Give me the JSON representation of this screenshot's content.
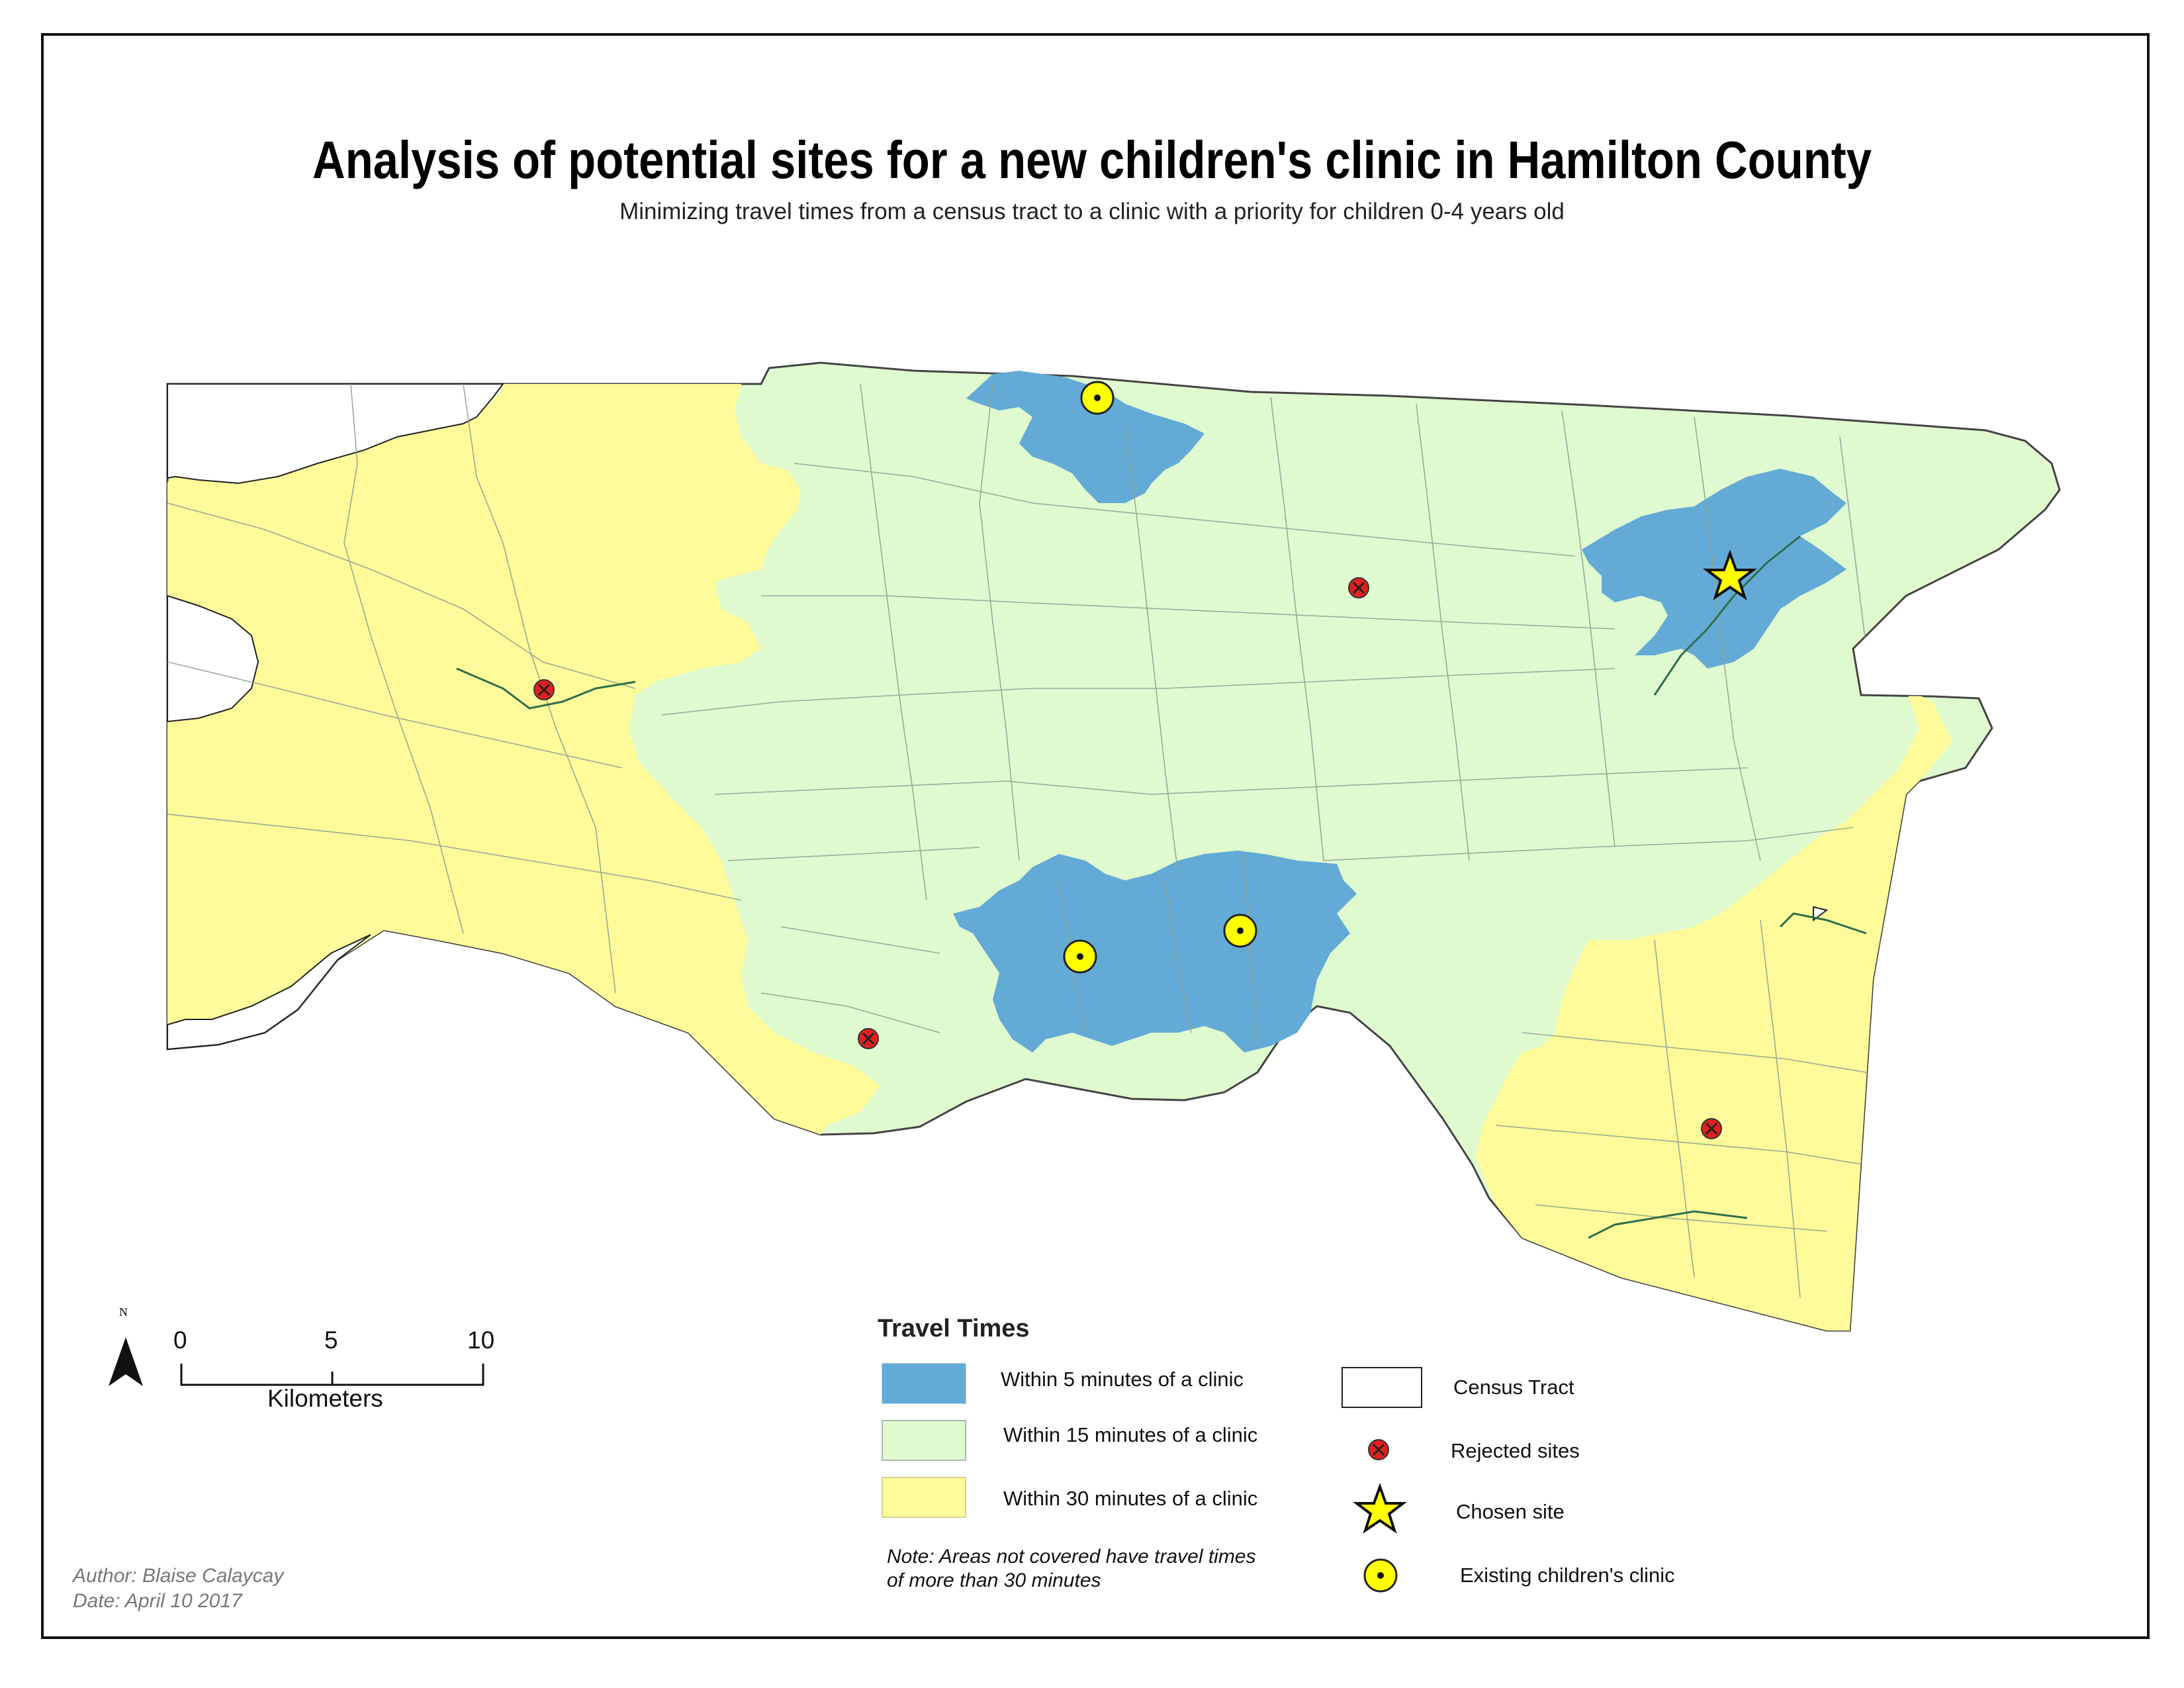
{
  "title": "Analysis of potential sites for a new children's clinic in Hamilton County",
  "subtitle": "Minimizing travel times from a census tract to a clinic with a priority for children 0-4 years old",
  "colors": {
    "within_5": "#63abd6",
    "within_15": "#e0fad0",
    "within_30": "#fffa9a",
    "rejected": "#e0201e",
    "clinic_yellow": "#ffff00",
    "tract_line": "#a8b8a0",
    "river": "#2e6f4a"
  },
  "legend": {
    "title": "Travel Times",
    "within_5": "Within 5 minutes of a clinic",
    "within_15": "Within 15 minutes of a clinic",
    "within_30": "Within 30 minutes of a clinic",
    "census_tract": "Census Tract",
    "rejected_sites": "Rejected sites",
    "chosen_site": "Chosen site",
    "existing_clinic": "Existing children's clinic",
    "note": "Note: Areas not covered have travel times of more than 30 minutes"
  },
  "scale_bar": {
    "north": "N",
    "ticks": [
      "0",
      "5",
      "10"
    ],
    "unit": "Kilometers"
  },
  "credits": {
    "author": "Author: Blaise Calaycay",
    "date": "Date: April 10 2017"
  },
  "icons": {
    "rejected": "red-x-circle-icon",
    "chosen": "yellow-star-icon",
    "clinic": "yellow-dot-circle-icon",
    "north": "north-arrow-icon"
  }
}
